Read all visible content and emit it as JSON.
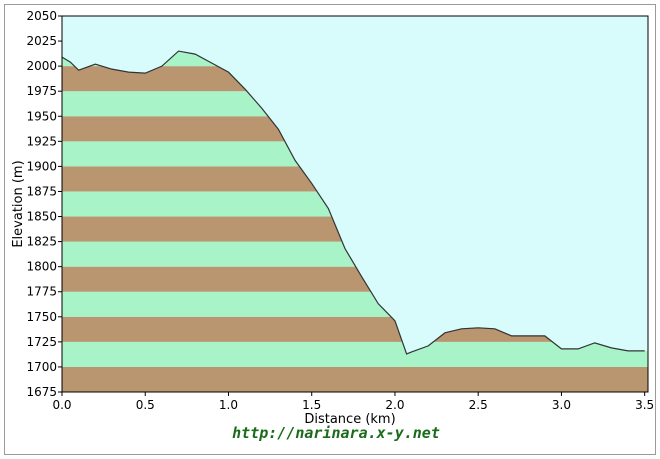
{
  "footer": {
    "url_text": "http://narinara.x-y.net"
  },
  "colors": {
    "sky": "#d8fbfb",
    "band_light": "#a8f4c8",
    "band_dark": "#b99570",
    "line": "#333333"
  },
  "chart_data": {
    "type": "area",
    "title": "",
    "xlabel": "Distance   (km)",
    "ylabel": "Elevation (m)",
    "xlim": [
      0,
      3.52
    ],
    "ylim": [
      1675,
      2050
    ],
    "x_ticks": [
      "0.0",
      "0.5",
      "1.0",
      "1.5",
      "2.0",
      "2.5",
      "3.0",
      "3.5"
    ],
    "y_ticks": [
      "1675",
      "1700",
      "1725",
      "1750",
      "1775",
      "1800",
      "1825",
      "1850",
      "1875",
      "1900",
      "1925",
      "1950",
      "1975",
      "2000",
      "2025",
      "2050"
    ],
    "band_step": 25,
    "grid": false,
    "series": [
      {
        "x": [
          0.0,
          0.05,
          0.1,
          0.2,
          0.3,
          0.4,
          0.5,
          0.6,
          0.7,
          0.8,
          0.9,
          1.0,
          1.1,
          1.2,
          1.3,
          1.4,
          1.5,
          1.6,
          1.7,
          1.8,
          1.9,
          2.0,
          2.07,
          2.1,
          2.2,
          2.3,
          2.4,
          2.5,
          2.6,
          2.7,
          2.8,
          2.9,
          3.0,
          3.1,
          3.2,
          3.3,
          3.4,
          3.45,
          3.5
        ],
        "y": [
          2009,
          2004,
          1996,
          2002,
          1997,
          1994,
          1993,
          2000,
          2015,
          2012,
          2003,
          1994,
          1977,
          1958,
          1937,
          1906,
          1883,
          1858,
          1818,
          1790,
          1763,
          1746,
          1713,
          1715,
          1721,
          1734,
          1738,
          1739,
          1738,
          1731,
          1731,
          1731,
          1718,
          1718,
          1724,
          1719,
          1716,
          1716,
          1716
        ]
      }
    ]
  }
}
